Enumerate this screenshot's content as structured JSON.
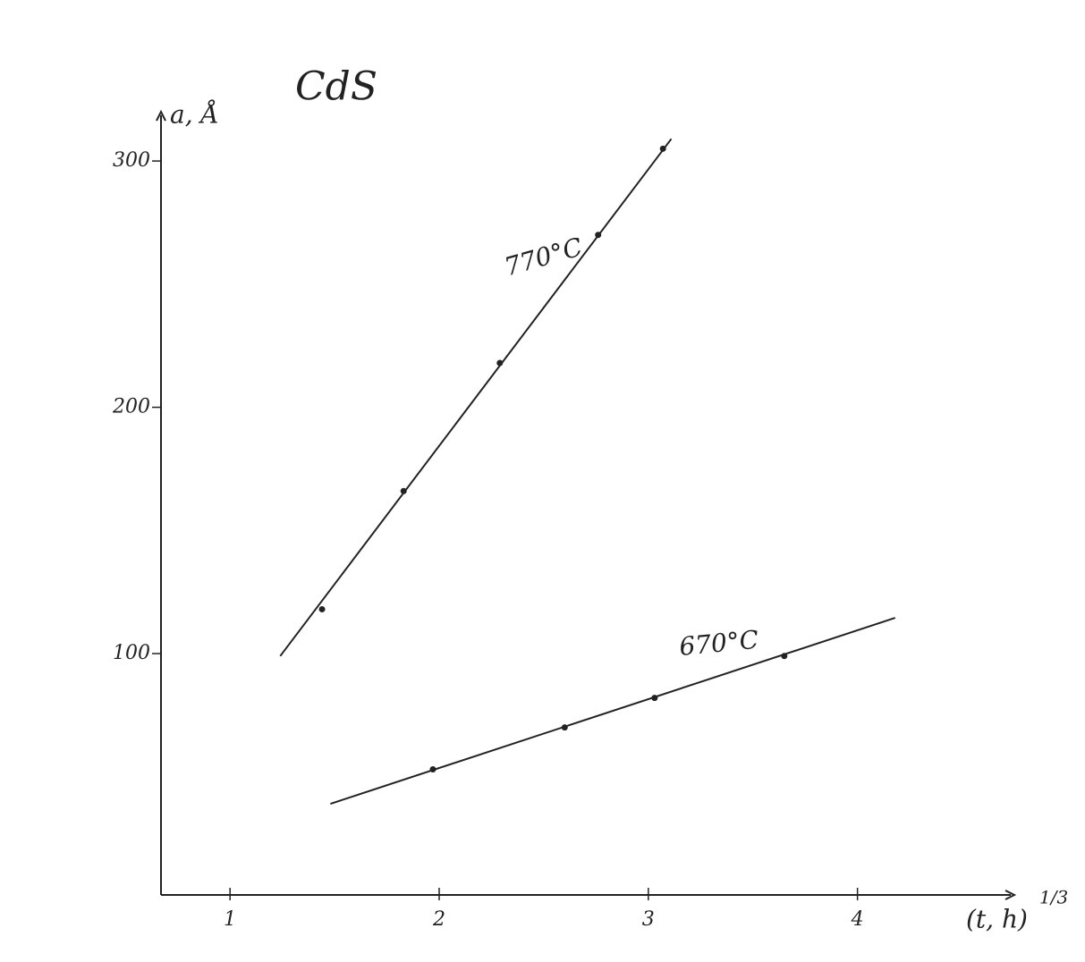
{
  "chart_data": {
    "type": "scatter",
    "title": "CdS",
    "y_label": "a, Å",
    "x_label": "(t, h)",
    "x_label_exponent": "1/3",
    "xlim": [
      0.67,
      4.75
    ],
    "ylim": [
      2,
      320
    ],
    "xticks": [
      1,
      2,
      3,
      4
    ],
    "yticks": [
      100,
      200,
      300
    ],
    "grid": false,
    "series": [
      {
        "name": "770°C",
        "color": "#222222",
        "x": [
          1.44,
          1.83,
          2.29,
          2.76,
          3.07
        ],
        "values": [
          118,
          166,
          218,
          270,
          305
        ],
        "fit_x": [
          1.24,
          3.11
        ],
        "fit_values": [
          99,
          309
        ]
      },
      {
        "name": "670°C",
        "color": "#222222",
        "x": [
          1.97,
          2.6,
          3.03,
          3.65
        ],
        "values": [
          53,
          70,
          82,
          99
        ],
        "fit_x": [
          1.48,
          4.18
        ],
        "fit_values": [
          39,
          114.5
        ]
      }
    ]
  }
}
